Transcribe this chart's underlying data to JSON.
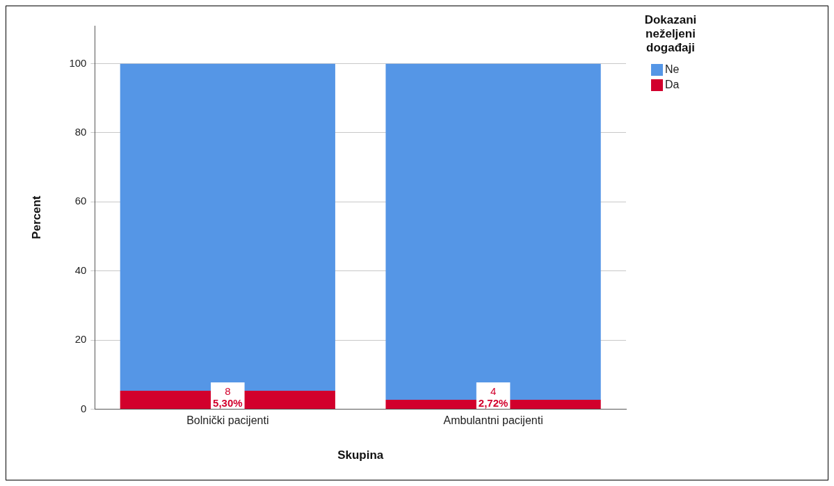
{
  "chart_data": {
    "type": "bar",
    "stacked": true,
    "xlabel": "Skupina",
    "ylabel": "Percent",
    "legend_title": "Dokazani neželjeni događaji",
    "legend": "top right",
    "grid": "y",
    "categories": [
      "Bolnički pacijenti",
      "Ambulantni pacijenti"
    ],
    "ylim": [
      0,
      111
    ],
    "yticks": [
      0,
      20,
      40,
      60,
      80,
      100
    ],
    "series": [
      {
        "name": "Da",
        "color": "#d2002c",
        "values": [
          5.3,
          2.72
        ],
        "value_labels": [
          "8\n5,30%",
          "4\n2,72%"
        ]
      },
      {
        "name": "Ne",
        "color": "#5596e6",
        "values": [
          94.7,
          97.28
        ]
      }
    ]
  }
}
